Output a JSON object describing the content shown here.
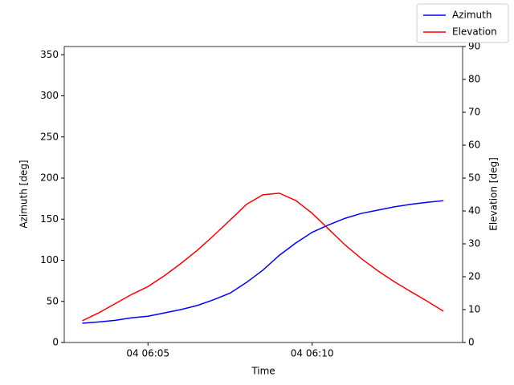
{
  "chart_data": {
    "type": "line",
    "x_label": "Time",
    "y_label": "Azimuth [deg]",
    "y2_label": "Elevation [deg]",
    "x": [
      "04 06:03:00",
      "04 06:03:30",
      "04 06:04:00",
      "04 06:04:30",
      "04 06:05:00",
      "04 06:05:30",
      "04 06:06:00",
      "04 06:06:30",
      "04 06:07:00",
      "04 06:07:30",
      "04 06:08:00",
      "04 06:08:30",
      "04 06:09:00",
      "04 06:09:30",
      "04 06:10:00",
      "04 06:10:30",
      "04 06:11:00",
      "04 06:11:30",
      "04 06:12:00",
      "04 06:12:30",
      "04 06:13:00",
      "04 06:13:30",
      "04 06:14:00"
    ],
    "series": [
      {
        "name": "Azimuth",
        "color": "#0000ff",
        "values": [
          23.4,
          25,
          27,
          30,
          32,
          36,
          40,
          45,
          52,
          60,
          73,
          88,
          106,
          121,
          134,
          143,
          151,
          157,
          161,
          165,
          168,
          170.5,
          172.5
        ]
      },
      {
        "name": "Elevation",
        "color": "#ff0000",
        "axis": "y2",
        "values": [
          6.6,
          9,
          11.8,
          14.6,
          17,
          20.3,
          24,
          28,
          32.5,
          37.2,
          42,
          44.9,
          45.4,
          43.2,
          39.3,
          34.5,
          29.7,
          25.5,
          21.8,
          18.5,
          15.5,
          12.6,
          9.5
        ]
      }
    ],
    "xlim": [
      "04 06:02:27",
      "04 06:14:35"
    ],
    "xticks": [
      {
        "value": "04 06:05:00",
        "label": "04 06:05"
      },
      {
        "value": "04 06:10:00",
        "label": "04 06:10"
      }
    ],
    "ylim": [
      0,
      360
    ],
    "yticks": [
      0,
      50,
      100,
      150,
      200,
      250,
      300,
      350
    ],
    "y2lim": [
      0,
      90
    ],
    "y2ticks": [
      0,
      10,
      20,
      30,
      40,
      50,
      60,
      70,
      80,
      90
    ],
    "legend": "upper right"
  }
}
